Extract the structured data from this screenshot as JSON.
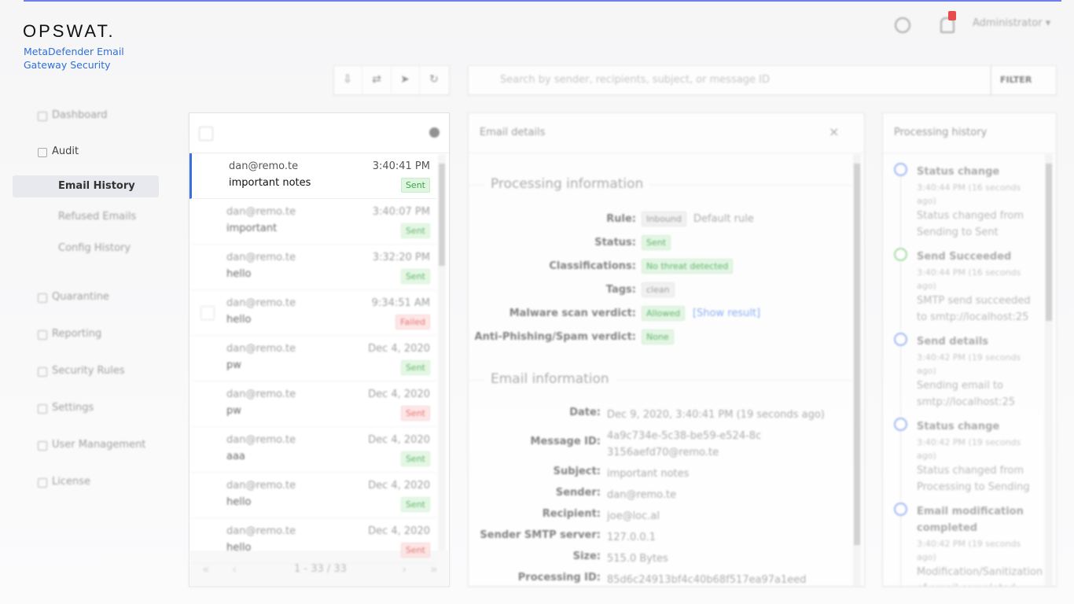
{
  "header": {
    "logo": "OPSWAT.",
    "product": "MetaDefender Email Gateway Security",
    "user": "Administrator"
  },
  "nav": {
    "items": [
      {
        "label": "Dashboard",
        "level": 1
      },
      {
        "label": "Audit",
        "level": 1
      },
      {
        "label": "Email History",
        "level": 2,
        "active": true
      },
      {
        "label": "Refused Emails",
        "level": 2
      },
      {
        "label": "Config History",
        "level": 2
      },
      {
        "label": "Quarantine",
        "level": 1
      },
      {
        "label": "Reporting",
        "level": 1
      },
      {
        "label": "Security Rules",
        "level": 1
      },
      {
        "label": "Settings",
        "level": 1
      },
      {
        "label": "User Management",
        "level": 1
      },
      {
        "label": "License",
        "level": 1
      }
    ]
  },
  "toolbar": {
    "search_placeholder": "Search by sender, recipients, subject, or message ID",
    "filter": "FILTER"
  },
  "email_list": {
    "rows": [
      {
        "sender": "dan@remo.te",
        "time": "3:40:41 PM",
        "subject": "important notes",
        "status": "Sent",
        "color": "green"
      },
      {
        "sender": "dan@remo.te",
        "time": "3:40:07 PM",
        "subject": "important",
        "status": "Sent",
        "color": "green"
      },
      {
        "sender": "dan@remo.te",
        "time": "3:32:20 PM",
        "subject": "hello",
        "status": "Sent",
        "color": "green"
      },
      {
        "sender": "dan@remo.te",
        "time": "9:34:51 AM",
        "subject": "hello",
        "status": "Failed",
        "color": "red"
      },
      {
        "sender": "dan@remo.te",
        "time": "Dec 4, 2020",
        "subject": "pw",
        "status": "Sent",
        "color": "green"
      },
      {
        "sender": "dan@remo.te",
        "time": "Dec 4, 2020",
        "subject": "pw",
        "status": "Sent",
        "color": "red"
      },
      {
        "sender": "dan@remo.te",
        "time": "Dec 4, 2020",
        "subject": "aaa",
        "status": "Sent",
        "color": "green"
      },
      {
        "sender": "dan@remo.te",
        "time": "Dec 4, 2020",
        "subject": "hello",
        "status": "Sent",
        "color": "green"
      },
      {
        "sender": "dan@remo.te",
        "time": "Dec 4, 2020",
        "subject": "hello",
        "status": "Sent",
        "color": "red"
      }
    ],
    "pagination": "1 - 33 / 33"
  },
  "details": {
    "title": "Email details",
    "processing": {
      "heading": "Processing information",
      "rows": [
        {
          "label": "Rule:",
          "badge": "Inbound",
          "color": "grey",
          "text": "Default rule"
        },
        {
          "label": "Status:",
          "badge": "Sent",
          "color": "green"
        },
        {
          "label": "Classifications:",
          "badge": "No threat detected",
          "color": "green"
        },
        {
          "label": "Tags:",
          "badge": "clean",
          "color": "grey"
        },
        {
          "label": "Malware scan verdict:",
          "badge": "Allowed",
          "color": "green",
          "link": "[Show result]"
        },
        {
          "label": "Anti-Phishing/Spam verdict:",
          "badge": "None",
          "color": "green"
        }
      ]
    },
    "info": {
      "heading": "Email information",
      "rows": [
        {
          "label": "Date:",
          "value": "Dec 9, 2020, 3:40:41 PM (19 seconds ago)"
        },
        {
          "label": "Message ID:",
          "value": "4a9c734e-5c38-be59-e524-8c3156aefd70@remo.te"
        },
        {
          "label": "Subject:",
          "value": "important notes"
        },
        {
          "label": "Sender:",
          "value": "dan@remo.te"
        },
        {
          "label": "Recipient:",
          "value": "joe@loc.al"
        },
        {
          "label": "Sender SMTP server:",
          "value": "127.0.0.1"
        },
        {
          "label": "Size:",
          "value": "515.0 Bytes"
        },
        {
          "label": "Processing ID:",
          "value": "85d6c24913bf4c40b68f517ea97a1eed"
        }
      ]
    }
  },
  "history": {
    "title": "Processing history",
    "events": [
      {
        "title": "Status change",
        "time": "3:40:44 PM (16 seconds ago)",
        "description": "Status changed from Sending to Sent",
        "color": "#8ea8f2"
      },
      {
        "title": "Send Succeeded",
        "time": "3:40:44 PM (16 seconds ago)",
        "description": "SMTP send succeeded to smtp://localhost:25",
        "color": "#8fd68f"
      },
      {
        "title": "Send details",
        "time": "3:40:42 PM (19 seconds ago)",
        "description": "Sending email to smtp://localhost:25",
        "color": "#8ea8f2"
      },
      {
        "title": "Status change",
        "time": "3:40:42 PM (19 seconds ago)",
        "description": "Status changed from Processing to Sending",
        "color": "#8ea8f2"
      },
      {
        "title": "Email modification completed",
        "time": "3:40:42 PM (19 seconds ago)",
        "description": "Modification/Sanitization of email completed",
        "color": "#8ea8f2"
      }
    ]
  }
}
